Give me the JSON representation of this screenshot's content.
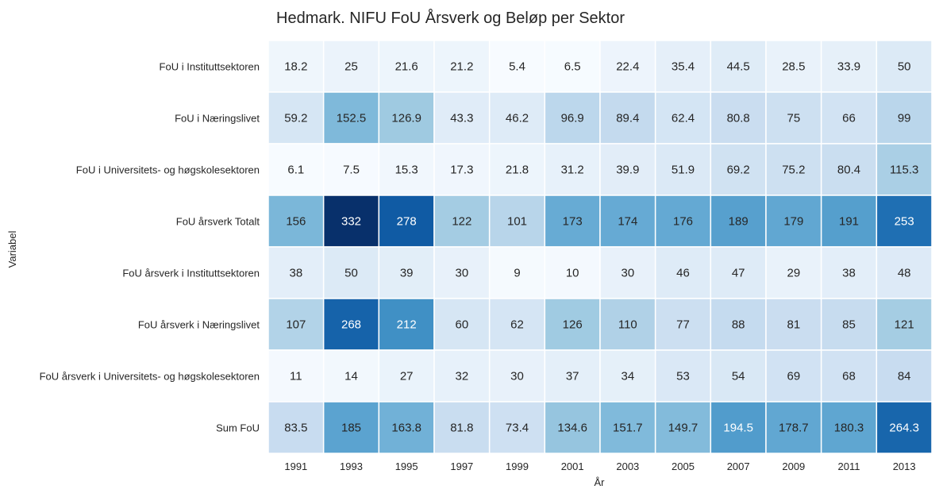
{
  "chart_data": {
    "type": "heatmap",
    "title": "Hedmark. NIFU FoU Årsverk og Beløp per Sektor",
    "xlabel": "År",
    "ylabel": "Variabel",
    "x": [
      "1991",
      "1993",
      "1995",
      "1997",
      "1999",
      "2001",
      "2003",
      "2005",
      "2007",
      "2009",
      "2011",
      "2013"
    ],
    "y": [
      "FoU i Instituttsektoren",
      "FoU i Næringslivet",
      "FoU i Universitets- og høgskolesektoren",
      "FoU årsverk Totalt",
      "FoU årsverk i Instituttsektoren",
      "FoU årsverk i Næringslivet",
      "FoU årsverk i Universitets- og høgskolesektoren",
      "Sum FoU"
    ],
    "values": [
      [
        18.2,
        25,
        21.6,
        21.2,
        5.4,
        6.5,
        22.4,
        35.4,
        44.5,
        28.5,
        33.9,
        50
      ],
      [
        59.2,
        152.5,
        126.9,
        43.3,
        46.2,
        96.9,
        89.4,
        62.4,
        80.8,
        75,
        66,
        99
      ],
      [
        6.1,
        7.5,
        15.3,
        17.3,
        21.8,
        31.2,
        39.9,
        51.9,
        69.2,
        75.2,
        80.4,
        115.3
      ],
      [
        156,
        332,
        278,
        122,
        101,
        173,
        174,
        176,
        189,
        179,
        191,
        253
      ],
      [
        38,
        50,
        39,
        30,
        9,
        10,
        30,
        46,
        47,
        29,
        38,
        48
      ],
      [
        107,
        268,
        212,
        60,
        62,
        126,
        110,
        77,
        88,
        81,
        85,
        121
      ],
      [
        11,
        14,
        27,
        32,
        30,
        37,
        34,
        53,
        54,
        69,
        68,
        84
      ],
      [
        83.5,
        185,
        163.8,
        81.8,
        73.4,
        134.6,
        151.7,
        149.7,
        194.5,
        178.7,
        180.3,
        264.3
      ]
    ],
    "colormap": "Blues",
    "vmin": 5.4,
    "vmax": 332,
    "colorbar": false,
    "cell_border_color": "#ffffff"
  }
}
